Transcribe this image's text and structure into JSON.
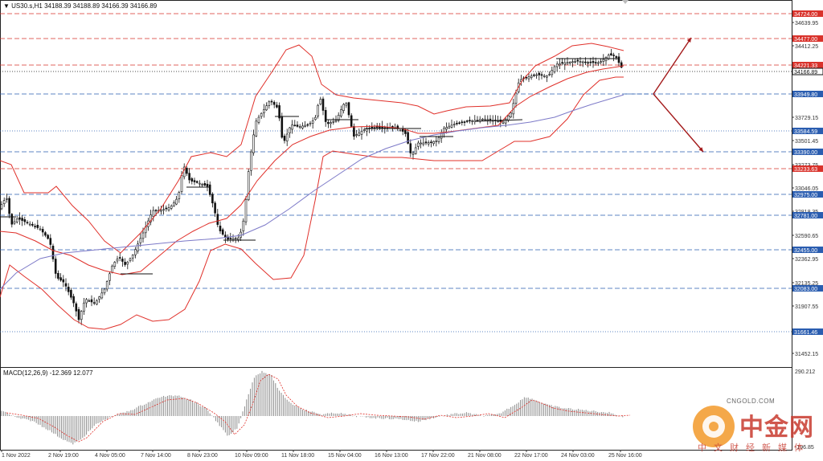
{
  "header": {
    "triangle": "▼",
    "symbol": "US30.s,H1",
    "ohlc": "34188.39 34188.89 34166.39 34166.89"
  },
  "macd": {
    "label": "MACD(12,26,9) -12.369 12.077",
    "scale_top": "290.212",
    "scale_bottom": "-196.85"
  },
  "price_axis": {
    "labels": [
      "34639.95",
      "34412.25",
      "33729.15",
      "33501.45",
      "33273.75",
      "33046.05",
      "32818.35",
      "32590.65",
      "32362.95",
      "32135.25",
      "31907.55",
      "31452.15"
    ],
    "levels": [
      {
        "text": "34724.00",
        "color": "#d9322b",
        "line": "dash"
      },
      {
        "text": "34477.00",
        "color": "#d9322b",
        "line": "dash"
      },
      {
        "text": "34221.33",
        "color": "#d9322b",
        "line": "dash"
      },
      {
        "text": "34166.89",
        "color": "#111111",
        "line": "dot"
      },
      {
        "text": "33949.80",
        "color": "#2a5db0",
        "line": "dash"
      },
      {
        "text": "33584.59",
        "color": "#2a5db0",
        "line": "dot"
      },
      {
        "text": "33390.00",
        "color": "#2a5db0",
        "line": "dash"
      },
      {
        "text": "33233.63",
        "color": "#d9322b",
        "line": "dash"
      },
      {
        "text": "32975.00",
        "color": "#2a5db0",
        "line": "dash"
      },
      {
        "text": "32781.00",
        "color": "#2a5db0",
        "line": "dash"
      },
      {
        "text": "32455.00",
        "color": "#2a5db0",
        "line": "dash"
      },
      {
        "text": "32083.00",
        "color": "#2a5db0",
        "line": "dash"
      },
      {
        "text": "31661.46",
        "color": "#2a5db0",
        "line": "dot"
      }
    ]
  },
  "time_axis": [
    "1 Nov 2022",
    "2 Nov 19:00",
    "4 Nov 05:00",
    "7 Nov 14:00",
    "8 Nov 23:00",
    "10 Nov 09:00",
    "11 Nov 18:00",
    "15 Nov 04:00",
    "16 Nov 13:00",
    "17 Nov 22:00",
    "21 Nov 08:00",
    "22 Nov 17:00",
    "24 Nov 03:00",
    "25 Nov 16:00"
  ],
  "watermark": {
    "url": "CNGOLD.COM",
    "name": "中金网",
    "sub": "中文财经新媒体"
  },
  "colors": {
    "bollinger": "#e0302a",
    "moving_average": "#7d7ac8",
    "candle": "#111111",
    "macd_hist": "#8c8c8c",
    "macd_signal": "#e0302a",
    "arrow": "#a3191a"
  }
}
